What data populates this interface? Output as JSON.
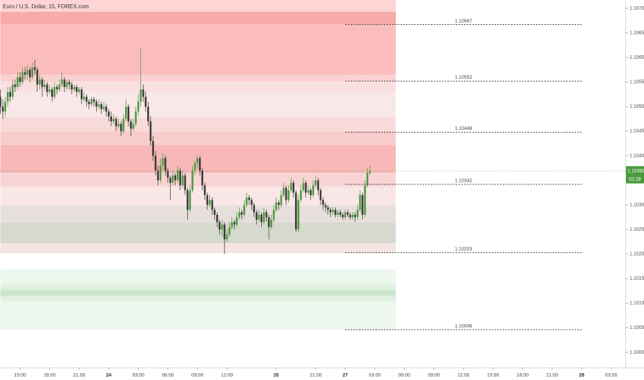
{
  "chart_data": {
    "type": "candlestick",
    "title": "Euro / U.S. Dollar, 15, FOREX.com",
    "up_color": "#4a9a3d",
    "down_color": "#3a3a3a",
    "xlim": [
      -0.13,
      253.7
    ],
    "ylim": [
      1.09969,
      1.10717
    ],
    "grid": false,
    "xticks": [
      {
        "value": 8,
        "label": "15:00"
      },
      {
        "value": 20,
        "label": "18:00"
      },
      {
        "value": 32,
        "label": "21:00"
      },
      {
        "value": 44,
        "label": "24"
      },
      {
        "value": 56,
        "label": "03:00"
      },
      {
        "value": 68,
        "label": "06:00"
      },
      {
        "value": 80,
        "label": "09:00"
      },
      {
        "value": 92,
        "label": "12:00"
      },
      {
        "value": 112,
        "label": "26"
      },
      {
        "value": 128,
        "label": "21:00"
      },
      {
        "value": 140,
        "label": "27"
      },
      {
        "value": 152,
        "label": "03:00"
      },
      {
        "value": 164,
        "label": "06:00"
      },
      {
        "value": 176,
        "label": "09:00"
      },
      {
        "value": 188,
        "label": "12:00"
      },
      {
        "value": 200,
        "label": "15:00"
      },
      {
        "value": 212,
        "label": "18:00"
      },
      {
        "value": 224,
        "label": "21:00"
      },
      {
        "value": 236,
        "label": "28"
      },
      {
        "value": 248,
        "label": "03:00"
      }
    ],
    "yticks": [
      {
        "value": 1.107,
        "label": "1.10700"
      },
      {
        "value": 1.1065,
        "label": "1.10650"
      },
      {
        "value": 1.106,
        "label": "1.10600"
      },
      {
        "value": 1.1055,
        "label": "1.10550"
      },
      {
        "value": 1.105,
        "label": "1.10500"
      },
      {
        "value": 1.1045,
        "label": "1.10450"
      },
      {
        "value": 1.104,
        "label": "1.10400"
      },
      {
        "value": 1.1035,
        "label": "1.10350"
      },
      {
        "value": 1.103,
        "label": "1.10300"
      },
      {
        "value": 1.1025,
        "label": "1.10250"
      },
      {
        "value": 1.102,
        "label": "1.10200"
      },
      {
        "value": 1.1015,
        "label": "1.10150"
      },
      {
        "value": 1.101,
        "label": "1.10100"
      },
      {
        "value": 1.1005,
        "label": "1.10050"
      },
      {
        "value": 1.1,
        "label": "1.10000"
      }
    ],
    "last_price": 1.10369,
    "countdown": "02:28",
    "zone_xlim": [
      0,
      160.5
    ],
    "zones": [
      {
        "y": [
          1.10693,
          1.10717
        ],
        "color": "#fdd5d5"
      },
      {
        "y": [
          1.10565,
          1.10693
        ],
        "color": "#fbbcbc"
      },
      {
        "y": [
          1.10668,
          1.10693
        ],
        "color": "#f9aaaa"
      },
      {
        "y": [
          1.10551,
          1.10565
        ],
        "color": "#fbd0d0"
      },
      {
        "y": [
          1.1053,
          1.10551
        ],
        "color": "#f9e0e0"
      },
      {
        "y": [
          1.10478,
          1.1053
        ],
        "color": "#f9e8e8"
      },
      {
        "y": [
          1.1045,
          1.10478
        ],
        "color": "#f9dada"
      },
      {
        "y": [
          1.10422,
          1.1045
        ],
        "color": "#f9cccc"
      },
      {
        "y": [
          1.10365,
          1.10422
        ],
        "color": "#f8b8b8"
      },
      {
        "y": [
          1.10337,
          1.10365
        ],
        "color": "#f9d4d4"
      },
      {
        "y": [
          1.10299,
          1.10337
        ],
        "color": "#f9e6e6"
      },
      {
        "y": [
          1.10264,
          1.10299
        ],
        "color": "#e6dfdb"
      },
      {
        "y": [
          1.10222,
          1.10264
        ],
        "color": "#d6d9cd"
      },
      {
        "y": [
          1.10202,
          1.10222
        ],
        "color": "#f6e3e3"
      },
      {
        "y": [
          1.10046,
          1.10169
        ],
        "color": "#edf7ed"
      },
      {
        "y": [
          1.10105,
          1.10138
        ],
        "color": "#dff0df"
      },
      {
        "y": [
          1.10115,
          1.10127
        ],
        "color": "#cbe6cb"
      }
    ],
    "levels_x": [
      140,
      236
    ],
    "levels": [
      1.10667,
      1.10552,
      1.10448,
      1.10342,
      1.10203,
      1.10046
    ],
    "x": [
      0,
      1,
      2,
      3,
      4,
      5,
      6,
      7,
      8,
      9,
      10,
      11,
      12,
      13,
      14,
      15,
      16,
      17,
      18,
      19,
      20,
      21,
      22,
      23,
      24,
      25,
      26,
      27,
      28,
      29,
      30,
      31,
      32,
      33,
      34,
      35,
      36,
      37,
      38,
      39,
      40,
      41,
      42,
      43,
      44,
      45,
      46,
      47,
      48,
      49,
      50,
      51,
      52,
      53,
      54,
      55,
      56,
      57,
      58,
      59,
      60,
      61,
      62,
      63,
      64,
      65,
      66,
      67,
      68,
      69,
      70,
      71,
      72,
      73,
      74,
      75,
      76,
      77,
      78,
      79,
      80,
      81,
      82,
      83,
      84,
      85,
      86,
      87,
      88,
      89,
      90,
      91,
      92,
      93,
      94,
      95,
      96,
      97,
      98,
      99,
      100,
      101,
      102,
      103,
      104,
      105,
      106,
      107,
      108,
      109,
      110,
      111,
      112,
      113,
      114,
      115,
      116,
      117,
      118,
      119,
      120,
      121,
      122,
      123,
      124,
      125,
      126,
      127,
      128,
      129,
      130,
      131,
      132,
      133,
      134,
      135,
      136,
      137,
      138,
      139,
      140,
      141,
      142,
      143,
      144,
      145,
      146,
      147,
      148,
      149,
      150
    ],
    "candles": [
      [
        1.1052,
        1.10535,
        1.10485,
        1.105
      ],
      [
        1.105,
        1.10515,
        1.10475,
        1.1049
      ],
      [
        1.1049,
        1.1052,
        1.1048,
        1.1051
      ],
      [
        1.1051,
        1.1054,
        1.105,
        1.1053
      ],
      [
        1.1053,
        1.1054,
        1.1051,
        1.1052
      ],
      [
        1.1052,
        1.10555,
        1.10515,
        1.10545
      ],
      [
        1.10545,
        1.10555,
        1.1053,
        1.1054
      ],
      [
        1.1054,
        1.1057,
        1.10535,
        1.1056
      ],
      [
        1.1056,
        1.1057,
        1.1054,
        1.1055
      ],
      [
        1.1055,
        1.1058,
        1.10545,
        1.1057
      ],
      [
        1.1057,
        1.1058,
        1.10555,
        1.10565
      ],
      [
        1.10565,
        1.10585,
        1.10555,
        1.10575
      ],
      [
        1.10575,
        1.1058,
        1.1055,
        1.1056
      ],
      [
        1.1056,
        1.1059,
        1.10555,
        1.1058
      ],
      [
        1.1058,
        1.10595,
        1.10565,
        1.10575
      ],
      [
        1.10575,
        1.1058,
        1.1053,
        1.10545
      ],
      [
        1.10545,
        1.10565,
        1.10535,
        1.10555
      ],
      [
        1.10555,
        1.1056,
        1.1052,
        1.1054
      ],
      [
        1.1054,
        1.10555,
        1.10535,
        1.10545
      ],
      [
        1.10545,
        1.1055,
        1.1052,
        1.1053
      ],
      [
        1.1053,
        1.10545,
        1.10525,
        1.10535
      ],
      [
        1.10535,
        1.1054,
        1.1051,
        1.1052
      ],
      [
        1.1052,
        1.1055,
        1.10515,
        1.1054
      ],
      [
        1.1054,
        1.10545,
        1.10525,
        1.10535
      ],
      [
        1.10535,
        1.10555,
        1.1053,
        1.10545
      ],
      [
        1.10545,
        1.1057,
        1.1054,
        1.10555
      ],
      [
        1.10555,
        1.1056,
        1.1053,
        1.1054
      ],
      [
        1.1054,
        1.10555,
        1.10535,
        1.1055
      ],
      [
        1.1055,
        1.10555,
        1.10535,
        1.10545
      ],
      [
        1.10545,
        1.1055,
        1.10525,
        1.10535
      ],
      [
        1.10535,
        1.10545,
        1.1053,
        1.1054
      ],
      [
        1.1054,
        1.10545,
        1.1052,
        1.1053
      ],
      [
        1.1053,
        1.1054,
        1.10525,
        1.10535
      ],
      [
        1.10535,
        1.1054,
        1.10505,
        1.10515
      ],
      [
        1.10515,
        1.1053,
        1.1051,
        1.1052
      ],
      [
        1.1052,
        1.10525,
        1.105,
        1.1051
      ],
      [
        1.1051,
        1.10515,
        1.10495,
        1.10505
      ],
      [
        1.10505,
        1.1052,
        1.105,
        1.10515
      ],
      [
        1.10515,
        1.1052,
        1.105,
        1.1051
      ],
      [
        1.1051,
        1.10515,
        1.1049,
        1.105
      ],
      [
        1.105,
        1.10515,
        1.10495,
        1.10505
      ],
      [
        1.10505,
        1.1051,
        1.10485,
        1.10495
      ],
      [
        1.10495,
        1.1051,
        1.1049,
        1.105
      ],
      [
        1.105,
        1.10505,
        1.1048,
        1.1049
      ],
      [
        1.1049,
        1.10495,
        1.1047,
        1.1048
      ],
      [
        1.1048,
        1.1049,
        1.1046,
        1.1047
      ],
      [
        1.1047,
        1.10485,
        1.10465,
        1.10475
      ],
      [
        1.10475,
        1.1048,
        1.1045,
        1.1046
      ],
      [
        1.1046,
        1.10475,
        1.10455,
        1.10465
      ],
      [
        1.10465,
        1.1047,
        1.1044,
        1.1045
      ],
      [
        1.1045,
        1.10485,
        1.10445,
        1.10475
      ],
      [
        1.10475,
        1.10515,
        1.1047,
        1.105
      ],
      [
        1.105,
        1.10505,
        1.1046,
        1.1047
      ],
      [
        1.1047,
        1.10475,
        1.1044,
        1.10455
      ],
      [
        1.10455,
        1.10475,
        1.1045,
        1.10465
      ],
      [
        1.10465,
        1.105,
        1.1046,
        1.1049
      ],
      [
        1.1049,
        1.10525,
        1.1048,
        1.1051
      ],
      [
        1.1051,
        1.1062,
        1.105,
        1.10535
      ],
      [
        1.10535,
        1.10545,
        1.1051,
        1.1052
      ],
      [
        1.1052,
        1.1053,
        1.1049,
        1.105
      ],
      [
        1.105,
        1.1051,
        1.1046,
        1.1047
      ],
      [
        1.1047,
        1.1048,
        1.1042,
        1.1043
      ],
      [
        1.1043,
        1.1044,
        1.1039,
        1.104
      ],
      [
        1.104,
        1.1041,
        1.1036,
        1.1037
      ],
      [
        1.1037,
        1.1038,
        1.1034,
        1.1035
      ],
      [
        1.1035,
        1.10395,
        1.10345,
        1.1038
      ],
      [
        1.1038,
        1.10405,
        1.1037,
        1.10395
      ],
      [
        1.10395,
        1.104,
        1.1036,
        1.1037
      ],
      [
        1.1037,
        1.10375,
        1.10345,
        1.10355
      ],
      [
        1.10355,
        1.1036,
        1.1031,
        1.10345
      ],
      [
        1.10345,
        1.1037,
        1.1034,
        1.1036
      ],
      [
        1.1036,
        1.10365,
        1.1034,
        1.1035
      ],
      [
        1.1035,
        1.1038,
        1.10345,
        1.1037
      ],
      [
        1.1037,
        1.10375,
        1.1033,
        1.1034
      ],
      [
        1.1034,
        1.1037,
        1.10335,
        1.1036
      ],
      [
        1.1036,
        1.10365,
        1.1032,
        1.1033
      ],
      [
        1.1033,
        1.10335,
        1.1027,
        1.1029
      ],
      [
        1.1029,
        1.1034,
        1.10285,
        1.1033
      ],
      [
        1.1033,
        1.1038,
        1.10325,
        1.1037
      ],
      [
        1.1037,
        1.1039,
        1.1036,
        1.10385
      ],
      [
        1.10385,
        1.104,
        1.10375,
        1.10395
      ],
      [
        1.10395,
        1.104,
        1.1036,
        1.1037
      ],
      [
        1.1037,
        1.10375,
        1.1033,
        1.1034
      ],
      [
        1.1034,
        1.10345,
        1.1031,
        1.1032
      ],
      [
        1.1032,
        1.10325,
        1.1029,
        1.103
      ],
      [
        1.103,
        1.1032,
        1.10295,
        1.1031
      ],
      [
        1.1031,
        1.10315,
        1.1028,
        1.1029
      ],
      [
        1.1029,
        1.10295,
        1.1027,
        1.1028
      ],
      [
        1.1028,
        1.10285,
        1.10255,
        1.10265
      ],
      [
        1.10265,
        1.1027,
        1.1024,
        1.1025
      ],
      [
        1.1025,
        1.1027,
        1.10235,
        1.1026
      ],
      [
        1.1026,
        1.10265,
        1.102,
        1.1023
      ],
      [
        1.1023,
        1.1025,
        1.10225,
        1.1024
      ],
      [
        1.1024,
        1.10265,
        1.10235,
        1.10255
      ],
      [
        1.10255,
        1.10275,
        1.1025,
        1.10265
      ],
      [
        1.10265,
        1.1027,
        1.1025,
        1.1026
      ],
      [
        1.1026,
        1.10285,
        1.10255,
        1.10275
      ],
      [
        1.10275,
        1.10295,
        1.1027,
        1.10285
      ],
      [
        1.10285,
        1.1029,
        1.1027,
        1.1028
      ],
      [
        1.1028,
        1.1031,
        1.10275,
        1.103
      ],
      [
        1.103,
        1.10325,
        1.10295,
        1.10315
      ],
      [
        1.10315,
        1.1032,
        1.103,
        1.1031
      ],
      [
        1.1031,
        1.10315,
        1.1029,
        1.103
      ],
      [
        1.103,
        1.10305,
        1.10275,
        1.10285
      ],
      [
        1.10285,
        1.1029,
        1.1026,
        1.1027
      ],
      [
        1.1027,
        1.1029,
        1.10265,
        1.1028
      ],
      [
        1.1028,
        1.10285,
        1.10255,
        1.10265
      ],
      [
        1.10265,
        1.10295,
        1.1026,
        1.10285
      ],
      [
        1.10285,
        1.1029,
        1.10265,
        1.10275
      ],
      [
        1.10275,
        1.1028,
        1.1023,
        1.10255
      ],
      [
        1.10255,
        1.1028,
        1.1025,
        1.1027
      ],
      [
        1.1027,
        1.103,
        1.10265,
        1.1029
      ],
      [
        1.1029,
        1.10315,
        1.10285,
        1.10305
      ],
      [
        1.10305,
        1.1031,
        1.1029,
        1.103
      ],
      [
        1.103,
        1.1033,
        1.10295,
        1.1032
      ],
      [
        1.1032,
        1.10345,
        1.10315,
        1.10335
      ],
      [
        1.10335,
        1.1034,
        1.103,
        1.1031
      ],
      [
        1.1031,
        1.1034,
        1.10305,
        1.1033
      ],
      [
        1.1033,
        1.10355,
        1.10325,
        1.10345
      ],
      [
        1.10345,
        1.1035,
        1.10315,
        1.10325
      ],
      [
        1.10325,
        1.1033,
        1.10245,
        1.1025
      ],
      [
        1.1025,
        1.1032,
        1.10245,
        1.1031
      ],
      [
        1.1031,
        1.1034,
        1.10305,
        1.1033
      ],
      [
        1.1033,
        1.10355,
        1.10325,
        1.10345
      ],
      [
        1.10345,
        1.1035,
        1.10315,
        1.10325
      ],
      [
        1.10325,
        1.1034,
        1.1032,
        1.1033
      ],
      [
        1.1033,
        1.10335,
        1.1031,
        1.1032
      ],
      [
        1.1032,
        1.1035,
        1.10315,
        1.1034
      ],
      [
        1.1034,
        1.1036,
        1.10335,
        1.1035
      ],
      [
        1.1035,
        1.10355,
        1.1032,
        1.1033
      ],
      [
        1.1033,
        1.10335,
        1.103,
        1.1031
      ],
      [
        1.1031,
        1.10315,
        1.1029,
        1.103
      ],
      [
        1.103,
        1.10305,
        1.10285,
        1.10295
      ],
      [
        1.10295,
        1.103,
        1.1028,
        1.1029
      ],
      [
        1.1029,
        1.10295,
        1.10275,
        1.10285
      ],
      [
        1.10285,
        1.10295,
        1.1028,
        1.1029
      ],
      [
        1.1029,
        1.10295,
        1.10275,
        1.1028
      ],
      [
        1.1028,
        1.1029,
        1.10275,
        1.10285
      ],
      [
        1.10285,
        1.1029,
        1.10275,
        1.1028
      ],
      [
        1.1028,
        1.10285,
        1.1027,
        1.10275
      ],
      [
        1.10275,
        1.1029,
        1.1027,
        1.10285
      ],
      [
        1.10285,
        1.1029,
        1.10275,
        1.1028
      ],
      [
        1.1028,
        1.10285,
        1.1027,
        1.10275
      ],
      [
        1.10275,
        1.10285,
        1.1027,
        1.1028
      ],
      [
        1.1028,
        1.10285,
        1.10265,
        1.10275
      ],
      [
        1.10275,
        1.103,
        1.1027,
        1.1029
      ],
      [
        1.1029,
        1.1033,
        1.10285,
        1.1032
      ],
      [
        1.1032,
        1.10325,
        1.1027,
        1.1028
      ],
      [
        1.1028,
        1.1035,
        1.10275,
        1.1034
      ],
      [
        1.1034,
        1.10375,
        1.10335,
        1.10365
      ],
      [
        1.10365,
        1.1038,
        1.1036,
        1.10369
      ]
    ]
  }
}
